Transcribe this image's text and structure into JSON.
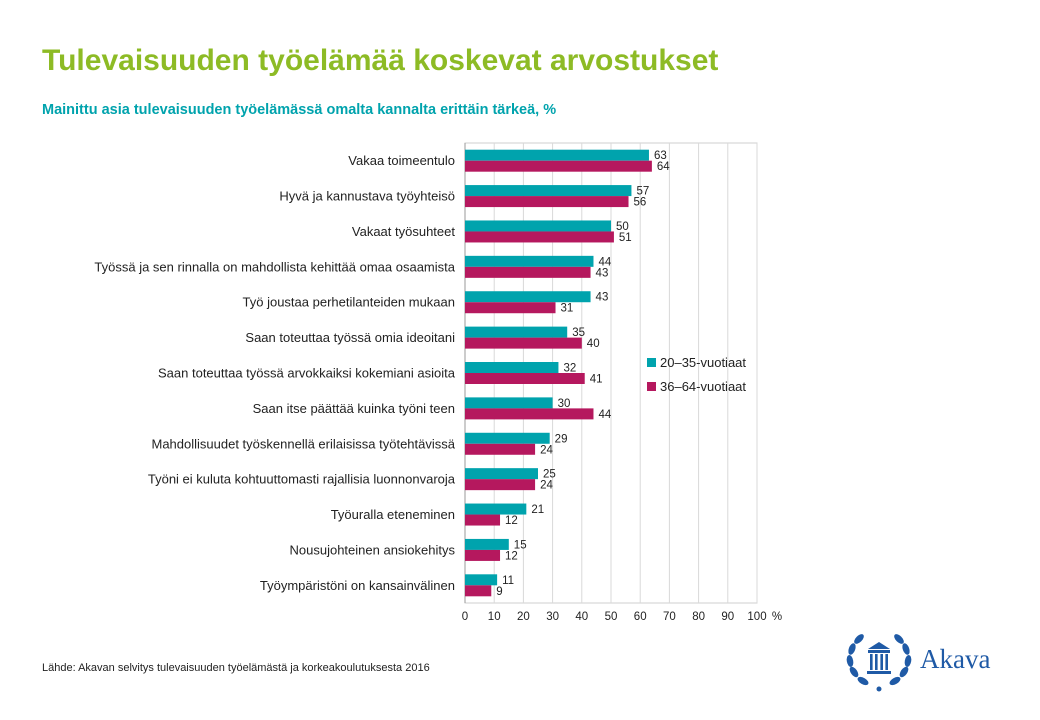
{
  "header": {
    "title": "Tulevaisuuden työelämää koskevat arvostukset",
    "subtitle": "Mainittu asia tulevaisuuden työelämässä omalta kannalta erittäin tärkeä, %"
  },
  "footer": {
    "source": "Lähde: Akavan selvitys tulevaisuuden työelämästä ja korkeakoulutuksesta 2016"
  },
  "logo": {
    "word": "Akava",
    "icon": "laurel-wreath-column-icon",
    "color": "#1f5aa6"
  },
  "chart_data": {
    "type": "bar",
    "orientation": "horizontal",
    "categories": [
      "Vakaa toimeentulo",
      "Hyvä ja kannustava työyhteisö",
      "Vakaat työsuhteet",
      "Työssä ja sen rinnalla on mahdollista kehittää omaa osaamista",
      "Työ joustaa perhetilanteiden mukaan",
      "Saan toteuttaa työssä omia ideoitani",
      "Saan toteuttaa työssä arvokkaiksi kokemiani asioita",
      "Saan itse päättää kuinka työni teen",
      "Mahdollisuudet työskennellä erilaisissa työtehtävissä",
      "Työni ei kuluta kohtuuttomasti rajallisia luonnonvaroja",
      "Työuralla eteneminen",
      "Nousujohteinen ansiokehitys",
      "Työympäristöni on kansainvälinen"
    ],
    "series": [
      {
        "name": "20–35-vuotiaat",
        "color": "#00a3ad",
        "values": [
          63,
          57,
          50,
          44,
          43,
          35,
          32,
          30,
          29,
          25,
          21,
          15,
          11
        ]
      },
      {
        "name": "36–64-vuotiaat",
        "color": "#b5185e",
        "values": [
          64,
          56,
          51,
          43,
          31,
          40,
          41,
          44,
          24,
          24,
          12,
          12,
          9
        ]
      }
    ],
    "xlim": [
      0,
      100
    ],
    "xticks": [
      0,
      10,
      20,
      30,
      40,
      50,
      60,
      70,
      80,
      90,
      100
    ],
    "xunit": "%",
    "grid": true,
    "legend_position": "right"
  }
}
